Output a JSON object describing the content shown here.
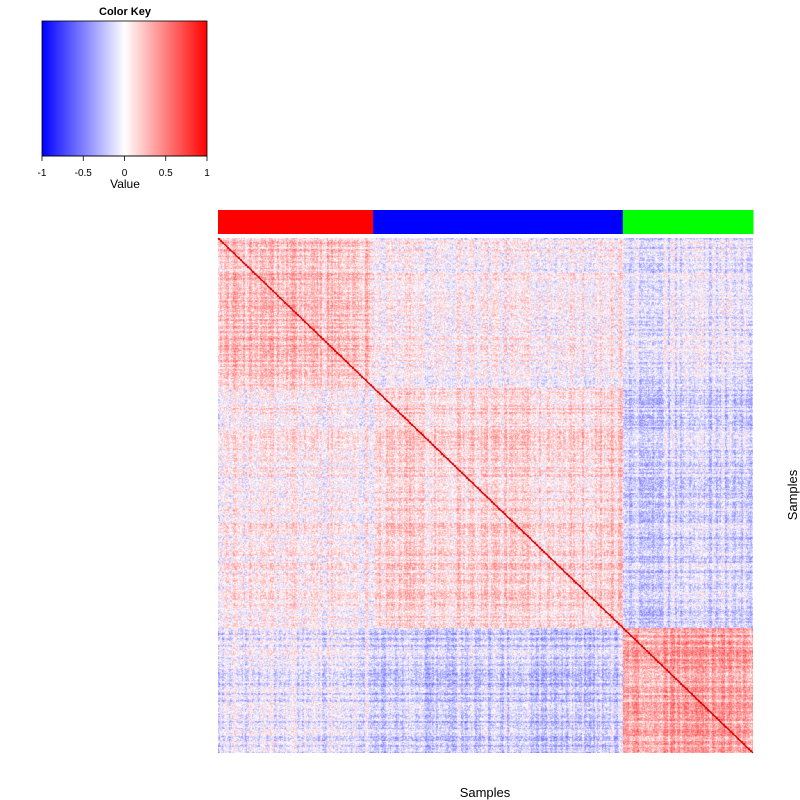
{
  "chart_data": {
    "type": "heatmap",
    "title": "",
    "xlabel": "Samples",
    "ylabel": "Samples",
    "matrix": "sample-sample correlation matrix (symmetric, diagonal = 1)",
    "n_samples": 300,
    "groups": [
      {
        "color": "#ff0000",
        "count": 87
      },
      {
        "color": "#0000ff",
        "count": 140
      },
      {
        "color": "#00ff00",
        "count": 73
      }
    ],
    "block_mean_correlation": [
      [
        0.3,
        0.05,
        -0.12
      ],
      [
        0.05,
        0.2,
        -0.25
      ],
      [
        -0.12,
        -0.25,
        0.45
      ]
    ],
    "diagonal_value": 1,
    "color_key": {
      "title": "Color Key",
      "label": "Value",
      "range": [
        -1,
        1
      ],
      "ticks": [
        "-1",
        "-0.5",
        "0",
        "0.5",
        "1"
      ],
      "colors": {
        "low": "#0000ff",
        "mid": "#ffffff",
        "high": "#ff0000"
      }
    }
  }
}
